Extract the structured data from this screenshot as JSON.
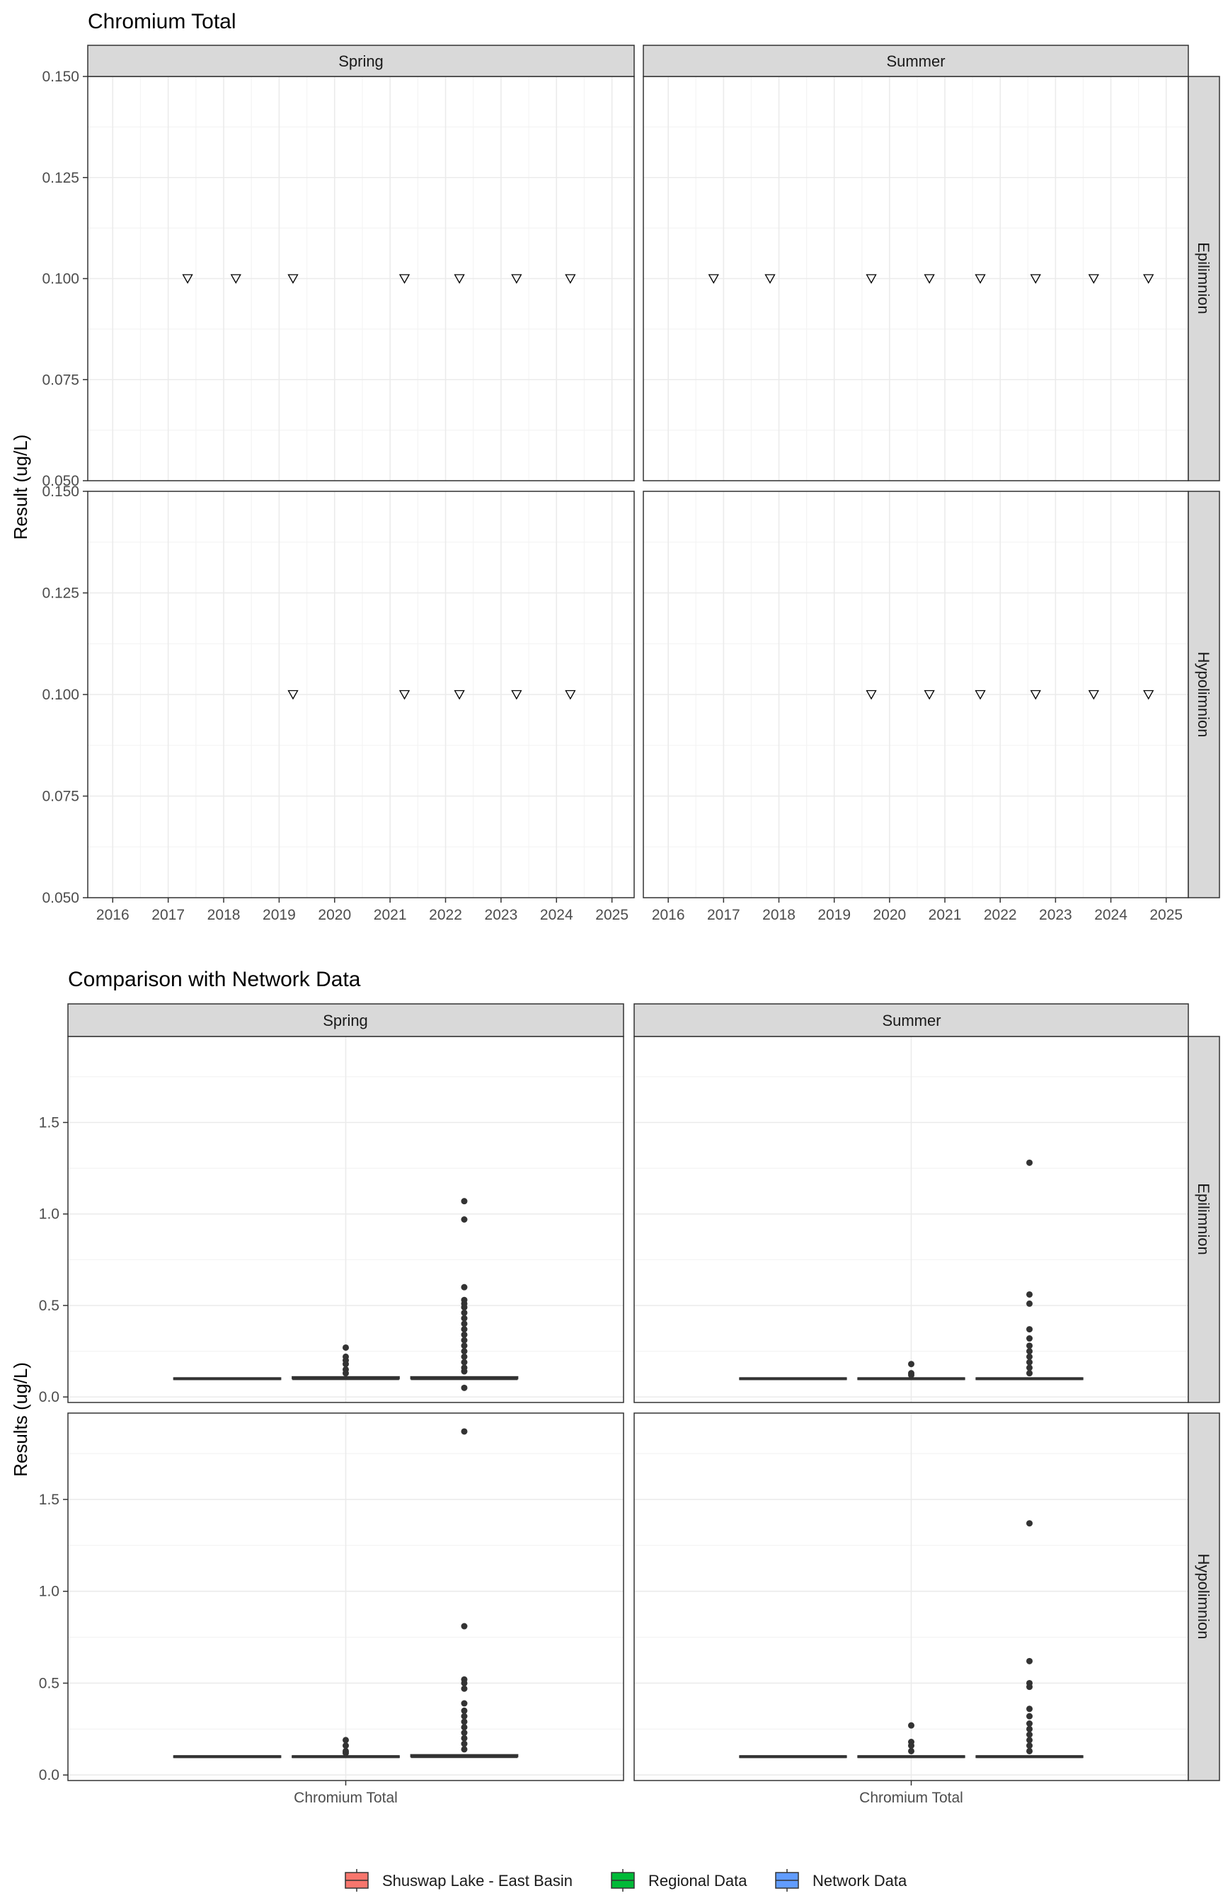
{
  "colors": {
    "strip_fill": "#d9d9d9",
    "panel_border": "#333333",
    "grid_major": "#ebebeb",
    "grid_minor": "#f4f4f4",
    "box_line": "#333333",
    "point_fill": "#333333"
  },
  "chart_data": [
    {
      "type": "scatter",
      "title": "Chromium Total",
      "ylabel": "Result (ug/L)",
      "xlabel": "",
      "x_ticks": [
        "2016",
        "2017",
        "2018",
        "2019",
        "2020",
        "2021",
        "2022",
        "2023",
        "2024",
        "2025"
      ],
      "xlim": [
        2015.55,
        2025.4
      ],
      "y_ticks": [
        "0.050",
        "0.075",
        "0.100",
        "0.125",
        "0.150"
      ],
      "ylim": [
        0.05,
        0.15
      ],
      "marker": "open-triangle-down",
      "grid": true,
      "columns": [
        "Spring",
        "Summer"
      ],
      "rows": [
        "Epilimnion",
        "Hypolimnion"
      ],
      "panels": [
        {
          "column": "Spring",
          "row": "Epilimnion",
          "x": [
            2017.35,
            2018.22,
            2019.25,
            2021.26,
            2022.25,
            2023.28,
            2024.25
          ],
          "y": [
            0.1,
            0.1,
            0.1,
            0.1,
            0.1,
            0.1,
            0.1
          ]
        },
        {
          "column": "Summer",
          "row": "Epilimnion",
          "x": [
            2016.82,
            2017.84,
            2019.67,
            2020.72,
            2021.64,
            2022.64,
            2023.69,
            2024.68
          ],
          "y": [
            0.1,
            0.1,
            0.1,
            0.1,
            0.1,
            0.1,
            0.1,
            0.1
          ]
        },
        {
          "column": "Spring",
          "row": "Hypolimnion",
          "x": [
            2019.25,
            2021.26,
            2022.25,
            2023.28,
            2024.25
          ],
          "y": [
            0.1,
            0.1,
            0.1,
            0.1,
            0.1
          ]
        },
        {
          "column": "Summer",
          "row": "Hypolimnion",
          "x": [
            2019.67,
            2020.72,
            2021.64,
            2022.64,
            2023.69,
            2024.68
          ],
          "y": [
            0.1,
            0.1,
            0.1,
            0.1,
            0.1,
            0.1
          ]
        }
      ]
    },
    {
      "type": "box",
      "title": "Comparison with Network Data",
      "ylabel": "Results (ug/L)",
      "xlabel": "",
      "categories": [
        "Chromium Total"
      ],
      "y_ticks": [
        "0.0",
        "0.5",
        "1.0",
        "1.5"
      ],
      "ylim": [
        -0.03,
        1.97
      ],
      "grid": true,
      "columns": [
        "Spring",
        "Summer"
      ],
      "rows": [
        "Epilimnion",
        "Hypolimnion"
      ],
      "legend": {
        "position": "bottom",
        "entries": [
          {
            "label": "Shuswap Lake - East Basin",
            "color": "#F8766D"
          },
          {
            "label": "Regional Data",
            "color": "#00BA38"
          },
          {
            "label": "Network Data",
            "color": "#619CFF"
          }
        ]
      },
      "panels": [
        {
          "column": "Spring",
          "row": "Epilimnion",
          "series": [
            {
              "name": "Shuswap Lake - East Basin",
              "median": 0.1,
              "q1": 0.1,
              "q3": 0.1,
              "outliers": []
            },
            {
              "name": "Regional Data",
              "median": 0.1,
              "q1": 0.1,
              "q3": 0.11,
              "outliers": [
                0.27,
                0.22,
                0.2,
                0.18,
                0.15,
                0.13
              ]
            },
            {
              "name": "Network Data",
              "median": 0.1,
              "q1": 0.1,
              "q3": 0.11,
              "outliers": [
                1.07,
                0.97,
                0.6,
                0.53,
                0.51,
                0.49,
                0.46,
                0.43,
                0.4,
                0.37,
                0.34,
                0.31,
                0.28,
                0.25,
                0.22,
                0.19,
                0.16,
                0.14,
                0.05
              ]
            }
          ]
        },
        {
          "column": "Summer",
          "row": "Epilimnion",
          "series": [
            {
              "name": "Shuswap Lake - East Basin",
              "median": 0.1,
              "q1": 0.1,
              "q3": 0.1,
              "outliers": []
            },
            {
              "name": "Regional Data",
              "median": 0.1,
              "q1": 0.1,
              "q3": 0.1,
              "outliers": [
                0.18,
                0.13,
                0.12
              ]
            },
            {
              "name": "Network Data",
              "median": 0.1,
              "q1": 0.1,
              "q3": 0.1,
              "outliers": [
                1.28,
                0.56,
                0.51,
                0.37,
                0.32,
                0.28,
                0.25,
                0.22,
                0.19,
                0.16,
                0.13
              ]
            }
          ]
        },
        {
          "column": "Spring",
          "row": "Hypolimnion",
          "series": [
            {
              "name": "Shuswap Lake - East Basin",
              "median": 0.1,
              "q1": 0.1,
              "q3": 0.1,
              "outliers": []
            },
            {
              "name": "Regional Data",
              "median": 0.1,
              "q1": 0.1,
              "q3": 0.1,
              "outliers": [
                0.19,
                0.16,
                0.13,
                0.12
              ]
            },
            {
              "name": "Network Data",
              "median": 0.1,
              "q1": 0.1,
              "q3": 0.11,
              "outliers": [
                1.87,
                0.81,
                0.52,
                0.5,
                0.47,
                0.39,
                0.35,
                0.32,
                0.29,
                0.26,
                0.23,
                0.2,
                0.17,
                0.14
              ]
            }
          ]
        },
        {
          "column": "Summer",
          "row": "Hypolimnion",
          "series": [
            {
              "name": "Shuswap Lake - East Basin",
              "median": 0.1,
              "q1": 0.1,
              "q3": 0.1,
              "outliers": []
            },
            {
              "name": "Regional Data",
              "median": 0.1,
              "q1": 0.1,
              "q3": 0.1,
              "outliers": [
                0.27,
                0.18,
                0.16,
                0.13
              ]
            },
            {
              "name": "Network Data",
              "median": 0.1,
              "q1": 0.1,
              "q3": 0.1,
              "outliers": [
                1.37,
                0.62,
                0.5,
                0.48,
                0.36,
                0.32,
                0.28,
                0.25,
                0.22,
                0.19,
                0.16,
                0.13
              ]
            }
          ]
        }
      ]
    }
  ]
}
